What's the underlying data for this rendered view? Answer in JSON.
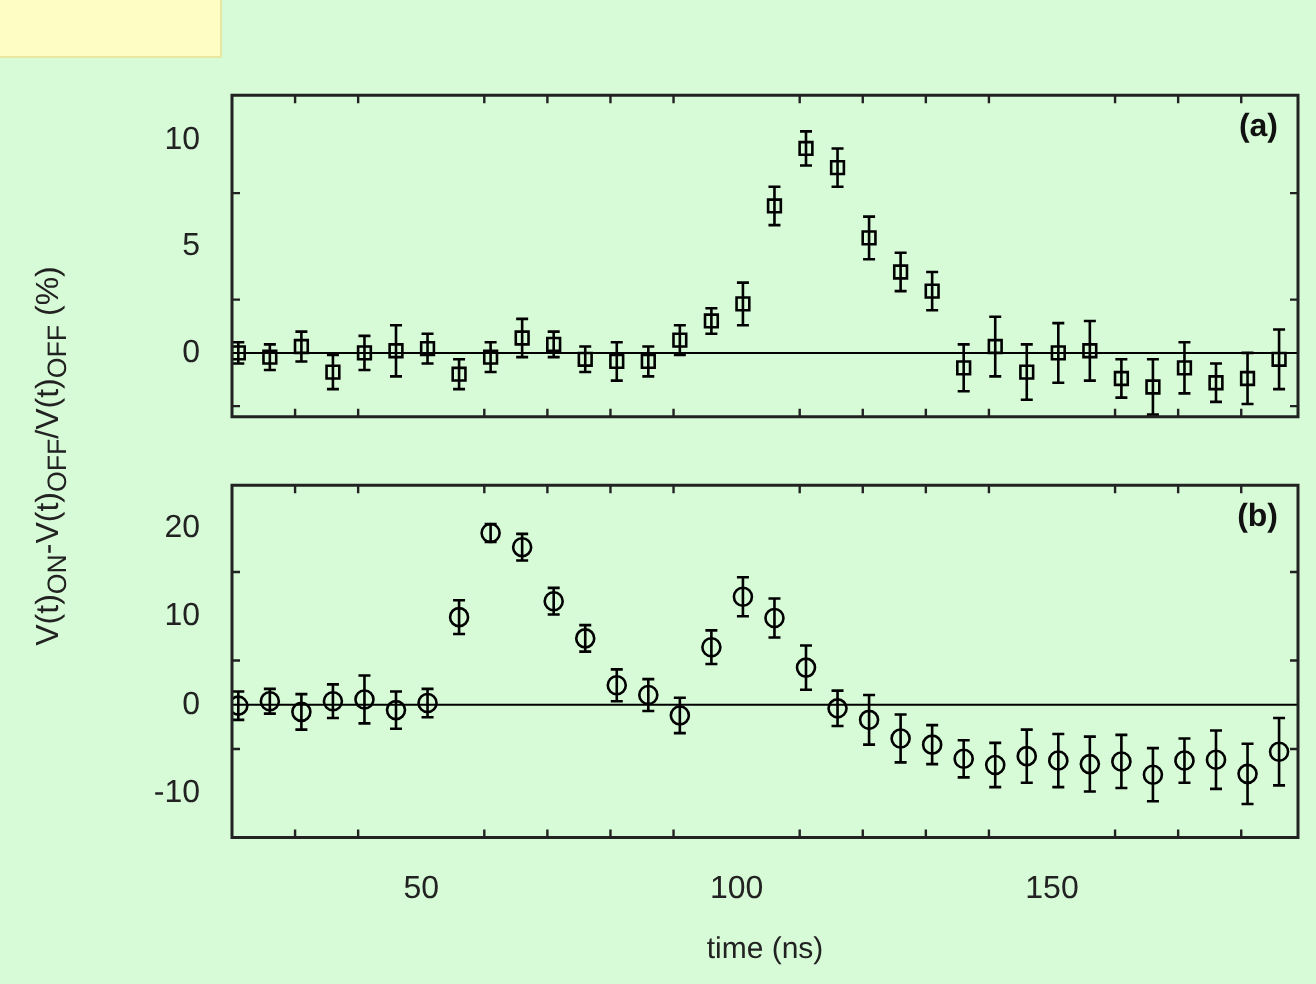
{
  "chart_data": [
    {
      "type": "scatter",
      "ylabel": "V(t)$_{ON}$-V(t)$_{OFF}$/V(t)$_{OFF}$ (%)",
      "annotations": [
        "(a)"
      ],
      "marker": "square",
      "tick_labels": "y",
      "xlim": [
        20,
        189
      ],
      "xticks": [
        {
          "value": 30,
          "label": null
        },
        {
          "value": 40,
          "label": null
        },
        50,
        {
          "value": 60,
          "label": null
        },
        {
          "value": 70,
          "label": null
        },
        {
          "value": 80,
          "label": null
        },
        {
          "value": 90,
          "label": null
        },
        100,
        {
          "value": 110,
          "label": null
        },
        {
          "value": 120,
          "label": null
        },
        {
          "value": 130,
          "label": null
        },
        {
          "value": 140,
          "label": null
        },
        150,
        {
          "value": 160,
          "label": null
        },
        {
          "value": 170,
          "label": null
        },
        {
          "value": 180,
          "label": null
        }
      ],
      "ylim": [
        -3,
        12.1
      ],
      "yticks": [
        {
          "value": -2.5,
          "label": null
        },
        0,
        {
          "value": 2.5,
          "label": null
        },
        5,
        {
          "value": 7.5,
          "label": null
        },
        10
      ],
      "ref_lines": [
        {
          "axis": "y",
          "value": 0,
          "color": "#000000"
        }
      ],
      "x": [
        21,
        26,
        31,
        36,
        41,
        46,
        51,
        56,
        61,
        66,
        71,
        76,
        81,
        86,
        91,
        96,
        101,
        106,
        111,
        116,
        121,
        126,
        131,
        136,
        141,
        146,
        151,
        156,
        161,
        166,
        171,
        176,
        181,
        186
      ],
      "series": [
        {
          "color": "#000000",
          "values": [
            0,
            -0.2,
            0.3,
            -0.9,
            0,
            0.1,
            0.2,
            -1.0,
            -0.2,
            0.7,
            0.4,
            -0.3,
            -0.4,
            -0.4,
            0.6,
            1.5,
            2.3,
            6.9,
            9.6,
            8.7,
            5.4,
            3.8,
            2.9,
            -0.7,
            0.3,
            -0.9,
            0,
            0.1,
            -1.2,
            -1.6,
            -0.7,
            -1.4,
            -1.2,
            -0.3
          ],
          "errors": [
            0.5,
            0.6,
            0.7,
            0.8,
            0.8,
            1.2,
            0.7,
            0.7,
            0.7,
            0.9,
            0.6,
            0.6,
            0.9,
            0.7,
            0.7,
            0.6,
            1.0,
            0.9,
            0.8,
            0.9,
            1.0,
            0.9,
            0.9,
            1.1,
            1.4,
            1.3,
            1.4,
            1.4,
            0.9,
            1.3,
            1.2,
            0.9,
            1.2,
            1.4
          ]
        }
      ]
    },
    {
      "type": "scatter",
      "xlabel": "time (ns)",
      "annotations": [
        "(b)"
      ],
      "marker": "circle",
      "xlim": [
        20,
        189
      ],
      "xticks": [
        {
          "value": 30,
          "label": null
        },
        {
          "value": 40,
          "label": null
        },
        50,
        {
          "value": 60,
          "label": null
        },
        {
          "value": 70,
          "label": null
        },
        {
          "value": 80,
          "label": null
        },
        {
          "value": 90,
          "label": null
        },
        100,
        {
          "value": 110,
          "label": null
        },
        {
          "value": 120,
          "label": null
        },
        {
          "value": 130,
          "label": null
        },
        {
          "value": 140,
          "label": null
        },
        150,
        {
          "value": 160,
          "label": null
        },
        {
          "value": 170,
          "label": null
        },
        {
          "value": 180,
          "label": null
        }
      ],
      "ylim": [
        -15,
        24.8
      ],
      "yticks": [
        {
          "value": -15,
          "label": null
        },
        -10,
        {
          "value": -5,
          "label": null
        },
        0,
        {
          "value": 5,
          "label": null
        },
        10,
        {
          "value": 15,
          "label": null
        },
        20
      ],
      "ref_lines": [
        {
          "axis": "y",
          "value": 0,
          "color": "#000000"
        }
      ],
      "x": [
        21,
        26,
        31,
        36,
        41,
        46,
        51,
        56,
        61,
        66,
        71,
        76,
        81,
        86,
        91,
        96,
        101,
        106,
        111,
        116,
        121,
        126,
        131,
        136,
        141,
        146,
        151,
        156,
        161,
        166,
        171,
        176,
        181,
        186
      ],
      "series": [
        {
          "color": "#000000",
          "values": [
            -0.1,
            0.4,
            -0.8,
            0.4,
            0.6,
            -0.6,
            0.2,
            9.9,
            19.4,
            17.8,
            11.7,
            7.5,
            2.2,
            1.1,
            -1.2,
            6.5,
            12.2,
            9.8,
            4.2,
            -0.4,
            -1.7,
            -3.8,
            -4.5,
            -6.1,
            -6.8,
            -5.8,
            -6.3,
            -6.7,
            -6.4,
            -7.9,
            -6.3,
            -6.2,
            -7.8,
            -5.3
          ],
          "errors": [
            1.6,
            1.4,
            2.0,
            1.9,
            2.7,
            2.1,
            1.6,
            1.9,
            1.0,
            1.5,
            1.5,
            1.5,
            1.8,
            1.8,
            2.0,
            1.9,
            2.2,
            2.2,
            2.5,
            2.0,
            2.8,
            2.7,
            2.2,
            2.1,
            2.5,
            3.0,
            3.0,
            3.1,
            3.0,
            3.0,
            2.5,
            3.3,
            3.4,
            3.8
          ]
        }
      ]
    }
  ]
}
